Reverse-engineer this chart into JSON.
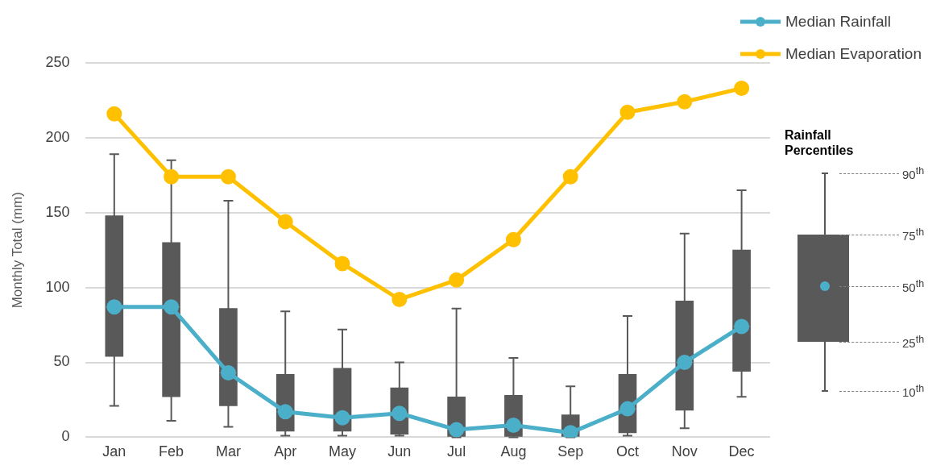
{
  "chart_data": {
    "type": "box",
    "ylabel": "Monthly Total (mm)",
    "legend_title": "Rainfall Percentiles",
    "annotations": [
      "90$^{th}$",
      "75$^{th}$",
      "50$^{th}$",
      "25$^{th}$",
      "10$^{th}$"
    ],
    "categories": [
      "Jan",
      "Feb",
      "Mar",
      "Apr",
      "May",
      "Jun",
      "Jul",
      "Aug",
      "Sep",
      "Oct",
      "Nov",
      "Dec"
    ],
    "series": [
      {
        "color": "#595959",
        "boxes": [
          {
            "low": 21,
            "q1": 54,
            "median": 87,
            "q3": 148,
            "high": 189
          },
          {
            "low": 11,
            "q1": 27,
            "median": 87,
            "q3": 130,
            "high": 185
          },
          {
            "low": 7,
            "q1": 21,
            "median": 43,
            "q3": 86,
            "high": 158
          },
          {
            "low": 1,
            "q1": 4,
            "median": 17,
            "q3": 42,
            "high": 84
          },
          {
            "low": 1,
            "q1": 4,
            "median": 13,
            "q3": 46,
            "high": 72
          },
          {
            "low": 1,
            "q1": 2,
            "median": 16,
            "q3": 33,
            "high": 50
          },
          {
            "low": 0,
            "q1": 0,
            "median": 5,
            "q3": 27,
            "high": 86
          },
          {
            "low": 0,
            "q1": 0,
            "median": 8,
            "q3": 28,
            "high": 53
          },
          {
            "low": 0,
            "q1": 0,
            "median": 3,
            "q3": 15,
            "high": 34
          },
          {
            "low": 1,
            "q1": 3,
            "median": 19,
            "q3": 42,
            "high": 81
          },
          {
            "low": 6,
            "q1": 18,
            "median": 50,
            "q3": 91,
            "high": 136
          },
          {
            "low": 27,
            "q1": 44,
            "median": 74,
            "q3": 125,
            "high": 165
          }
        ]
      },
      {
        "type": "line",
        "name": "Median Rainfall",
        "color": "#4bafc9",
        "values": [
          87,
          87,
          43,
          17,
          13,
          16,
          5,
          8,
          3,
          19,
          50,
          74
        ]
      },
      {
        "type": "line",
        "name": "Median Evaporation",
        "color": "#ffc000",
        "values": [
          216,
          174,
          174,
          144,
          116,
          92,
          105,
          132,
          174,
          217,
          224,
          233
        ]
      }
    ],
    "ylim": [
      0,
      250
    ],
    "yticks": [
      0,
      50,
      100,
      150,
      200,
      250
    ],
    "grid": "y",
    "legend": "top right",
    "marker": "circle"
  }
}
